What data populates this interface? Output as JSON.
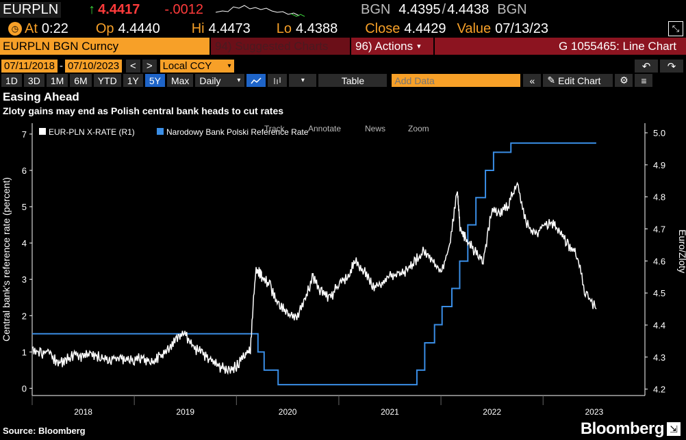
{
  "header": {
    "ticker": "EURPLN",
    "arrow": "↑",
    "last": "4.4417",
    "change": "-.0012",
    "source": "BGN",
    "bid": "4.4395",
    "sep": "/",
    "ask": "4.4438",
    "source2": "BGN"
  },
  "quote": {
    "at_label": "At",
    "time": "0:22",
    "op_label": "Op",
    "op": "4.4440",
    "hi_label": "Hi",
    "hi": "4.4473",
    "lo_label": "Lo",
    "lo": "4.4388",
    "close_label": "Close",
    "close": "4.4429",
    "value_label": "Value",
    "value_date": "07/13/23"
  },
  "security_bar": {
    "security": "EURPLN BGN Curncy",
    "suggested": "94) Suggested Charts",
    "actions": "96) Actions",
    "actions_caret": "▾",
    "chart_id": "G 1055465: Line Chart"
  },
  "range_bar": {
    "start": "07/11/2018",
    "dash": "-",
    "end": "07/10/2023",
    "prev": "<",
    "next": ">",
    "currency": "Local CCY",
    "undo": "↶",
    "redo": "↷"
  },
  "period_bar": {
    "periods": [
      "1D",
      "3D",
      "1M",
      "6M",
      "YTD",
      "1Y",
      "5Y",
      "Max"
    ],
    "selected": "5Y",
    "frequency": "Daily",
    "caret": "▾",
    "table": "Table",
    "add_data_placeholder": "Add Data",
    "collapse": "«",
    "edit_chart": "Edit Chart"
  },
  "titles": {
    "main": "Easing Ahead",
    "sub": "Zloty gains may end as Polish central bank heads to cut rates"
  },
  "overlay_tools": [
    "Track",
    "Annotate",
    "News",
    "Zoom"
  ],
  "footer": {
    "source": "Source: Bloomberg",
    "logo": "Bloomberg"
  },
  "colors": {
    "amber": "#f7a028",
    "negative": "#ff3b3b",
    "positive": "#3bd23b",
    "rate_line": "#3a8ee6",
    "fx_line": "#ffffff",
    "security_bar_bg": "#8c1420"
  },
  "chart_data": {
    "type": "line",
    "title": "Easing Ahead",
    "subtitle": "Zloty gains may end as Polish central bank heads to cut rates",
    "ylabel_left": "Central bank's reference rate (percent)",
    "ylabel_right": "Euro/Zloty",
    "ylim_left": [
      -0.2,
      7.3
    ],
    "ylim_right": [
      4.18,
      5.03
    ],
    "yticks_left": [
      0,
      1,
      2,
      3,
      4,
      5,
      6,
      7
    ],
    "yticks_right": [
      "4.2",
      "4.3",
      "4.4",
      "4.5",
      "4.6",
      "4.7",
      "4.8",
      "4.9",
      "5.0"
    ],
    "xticks": [
      "2018",
      "2019",
      "2020",
      "2021",
      "2022",
      "2023"
    ],
    "xlim": [
      "2018-01-01",
      "2023-12-31"
    ],
    "grid": false,
    "legend_position": "top-left",
    "series": [
      {
        "name": "EUR-PLN X-RATE (R1)",
        "axis": "right",
        "color": "#ffffff",
        "x": [
          "2018-01-01",
          "2018-02-01",
          "2018-03-01",
          "2018-04-01",
          "2018-05-01",
          "2018-06-01",
          "2018-07-01",
          "2018-08-01",
          "2018-09-01",
          "2018-10-01",
          "2018-11-01",
          "2018-12-01",
          "2019-01-01",
          "2019-02-01",
          "2019-03-01",
          "2019-04-01",
          "2019-05-01",
          "2019-06-01",
          "2019-07-01",
          "2019-08-01",
          "2019-09-01",
          "2019-10-01",
          "2019-11-01",
          "2019-12-01",
          "2020-01-01",
          "2020-02-01",
          "2020-02-20",
          "2020-03-10",
          "2020-03-25",
          "2020-04-01",
          "2020-05-01",
          "2020-06-01",
          "2020-07-01",
          "2020-08-01",
          "2020-09-01",
          "2020-10-01",
          "2020-11-01",
          "2020-12-01",
          "2021-01-01",
          "2021-02-01",
          "2021-03-01",
          "2021-04-01",
          "2021-05-01",
          "2021-06-01",
          "2021-07-01",
          "2021-08-01",
          "2021-09-01",
          "2021-10-01",
          "2021-11-01",
          "2021-12-01",
          "2022-01-01",
          "2022-02-01",
          "2022-03-01",
          "2022-03-10",
          "2022-04-01",
          "2022-05-01",
          "2022-06-01",
          "2022-07-01",
          "2022-08-01",
          "2022-09-01",
          "2022-10-01",
          "2022-11-01",
          "2022-12-01",
          "2023-01-01",
          "2023-02-01",
          "2023-03-01",
          "2023-04-01",
          "2023-05-01",
          "2023-06-01",
          "2023-07-10"
        ],
        "values": [
          4.33,
          4.31,
          4.32,
          4.28,
          4.29,
          4.31,
          4.3,
          4.31,
          4.3,
          4.29,
          4.3,
          4.29,
          4.29,
          4.3,
          4.28,
          4.3,
          4.32,
          4.36,
          4.37,
          4.33,
          4.31,
          4.29,
          4.27,
          4.26,
          4.27,
          4.31,
          4.32,
          4.58,
          4.56,
          4.55,
          4.52,
          4.46,
          4.44,
          4.42,
          4.48,
          4.55,
          4.5,
          4.48,
          4.53,
          4.55,
          4.6,
          4.57,
          4.52,
          4.53,
          4.56,
          4.55,
          4.57,
          4.6,
          4.63,
          4.6,
          4.56,
          4.65,
          4.82,
          4.7,
          4.67,
          4.63,
          4.6,
          4.76,
          4.75,
          4.78,
          4.84,
          4.72,
          4.68,
          4.71,
          4.72,
          4.69,
          4.65,
          4.62,
          4.5,
          4.45
        ]
      },
      {
        "name": "Narodowy Bank Polski Reference Rate",
        "axis": "left",
        "color": "#3a8ee6",
        "x": [
          "2018-01-01",
          "2020-03-18",
          "2020-04-09",
          "2020-05-29",
          "2021-10-07",
          "2021-11-04",
          "2021-12-09",
          "2022-01-05",
          "2022-02-09",
          "2022-03-09",
          "2022-04-07",
          "2022-05-06",
          "2022-06-09",
          "2022-07-08",
          "2022-09-08",
          "2023-07-10"
        ],
        "values": [
          1.5,
          1.0,
          0.5,
          0.1,
          0.5,
          1.25,
          1.75,
          2.25,
          2.75,
          3.5,
          4.5,
          5.25,
          6.0,
          6.5,
          6.75,
          6.75
        ],
        "step": true
      }
    ]
  }
}
